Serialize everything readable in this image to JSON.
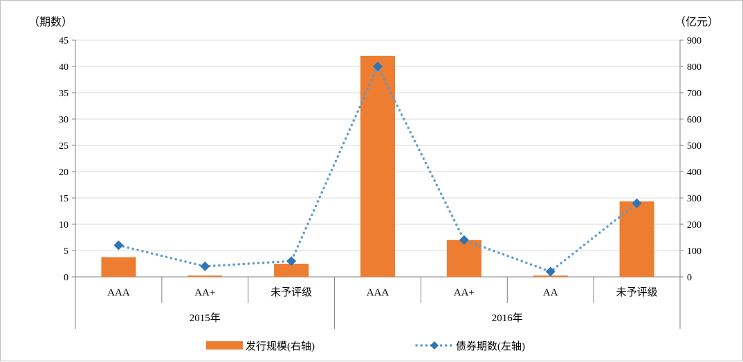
{
  "chart_data": {
    "type": "bar",
    "left_axis_unit": "（期数）",
    "right_axis_unit": "（亿元）",
    "left_axis": {
      "min": 0,
      "max": 45,
      "step": 5,
      "ticks": [
        "0",
        "5",
        "10",
        "15",
        "20",
        "25",
        "30",
        "35",
        "40",
        "45"
      ]
    },
    "right_axis": {
      "min": 0,
      "max": 900,
      "step": 100,
      "ticks": [
        "0",
        "100",
        "200",
        "300",
        "400",
        "500",
        "600",
        "700",
        "800",
        "900"
      ]
    },
    "groups": [
      {
        "label": "2015年",
        "categories": [
          "AAA",
          "AA+",
          "未予评级"
        ]
      },
      {
        "label": "2016年",
        "categories": [
          "AAA",
          "AA+",
          "AA",
          "未予评级"
        ]
      }
    ],
    "categories": [
      "AAA",
      "AA+",
      "未予评级",
      "AAA",
      "AA+",
      "AA",
      "未予评级"
    ],
    "series": [
      {
        "name": "发行规模(右轴)",
        "type": "bar",
        "axis": "right",
        "color": "#ED7D31",
        "values": [
          75,
          5,
          50,
          840,
          140,
          5,
          287
        ]
      },
      {
        "name": "债券期数(左轴)",
        "type": "line",
        "style": "dotted",
        "marker": "diamond",
        "axis": "left",
        "color": "#2E75B6",
        "values": [
          6,
          2,
          3,
          40,
          7,
          1,
          14
        ]
      }
    ],
    "grid": true,
    "legend_position": "bottom"
  }
}
